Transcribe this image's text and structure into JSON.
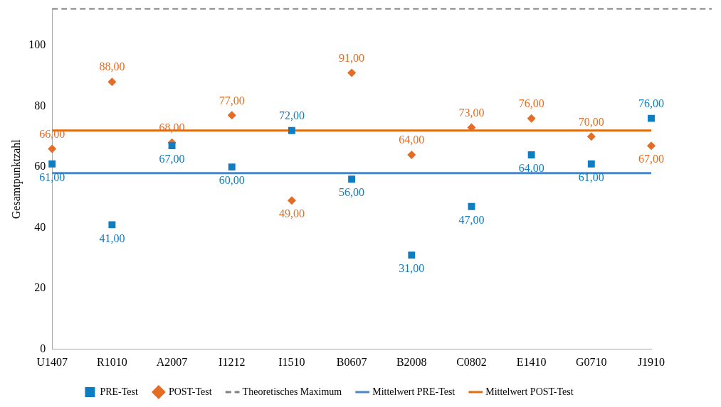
{
  "chart_data": {
    "type": "scatter",
    "ylabel": "Gesamtpunktzahl",
    "categories": [
      "U1407",
      "R1010",
      "A2007",
      "I1212",
      "I1510",
      "B0607",
      "B2008",
      "C0802",
      "E1410",
      "G0710",
      "J1910"
    ],
    "series": [
      {
        "name": "PRE-Test",
        "marker": "square",
        "color": "#0f7dc2",
        "values": [
          61,
          41,
          67,
          60,
          72,
          56,
          31,
          47,
          64,
          61,
          76
        ],
        "value_labels": [
          "61,00",
          "41,00",
          "67,00",
          "60,00",
          "72,00",
          "56,00",
          "31,00",
          "47,00",
          "64,00",
          "61,00",
          "76,00"
        ]
      },
      {
        "name": "POST-Test",
        "marker": "diamond",
        "color": "#e46c25",
        "values": [
          66,
          88,
          68,
          77,
          49,
          91,
          64,
          73,
          76,
          70,
          67
        ],
        "value_labels": [
          "66,00",
          "88,00",
          "68,00",
          "77,00",
          "49,00",
          "91,00",
          "64,00",
          "73,00",
          "76,00",
          "70,00",
          "67,00"
        ]
      },
      {
        "name": "Mittelwert PRE-Test",
        "type": "line",
        "marker": "none",
        "color": "#4a86c8",
        "values": [
          58,
          58,
          58,
          58,
          58,
          58,
          58,
          58,
          58,
          58,
          58
        ]
      },
      {
        "name": "Mittelwert POST-Test",
        "type": "line",
        "marker": "none",
        "color": "#e46c0a",
        "values": [
          72,
          72,
          72,
          72,
          72,
          72,
          72,
          72,
          72,
          72,
          72
        ]
      }
    ],
    "ref_lines": [
      {
        "axis": "y",
        "value": 112,
        "label": "Theoretisches Maximum",
        "color": "#7f7f7f",
        "line_style": "dashed"
      }
    ],
    "ylim": [
      0,
      112
    ],
    "yticks": [
      0,
      20,
      40,
      60,
      80,
      100
    ],
    "grid": false,
    "legend": "bottom"
  }
}
